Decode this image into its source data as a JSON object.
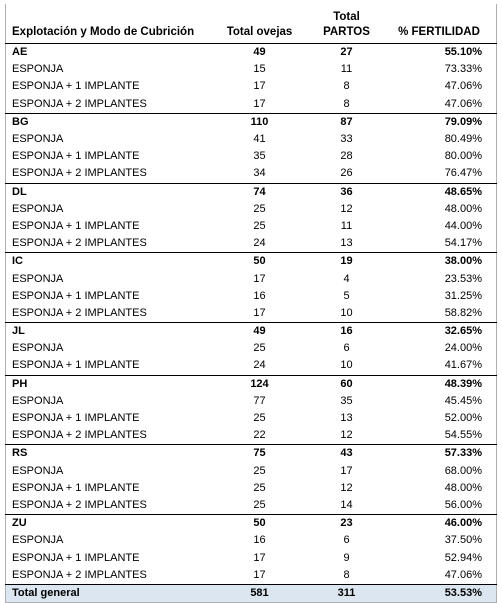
{
  "table": {
    "header": [
      "Explotación y Modo de Cubrición",
      "Total ovejas",
      [
        "Total",
        "PARTOS"
      ],
      "% FERTILIDAD"
    ],
    "groups": [
      {
        "row": [
          "AE",
          "49",
          "27",
          "55.10%"
        ],
        "subrows": [
          [
            "ESPONJA",
            "15",
            "11",
            "73.33%"
          ],
          [
            "ESPONJA + 1 IMPLANTE",
            "17",
            "8",
            "47.06%"
          ],
          [
            "ESPONJA + 2 IMPLANTES",
            "17",
            "8",
            "47.06%"
          ]
        ]
      },
      {
        "row": [
          "BG",
          "110",
          "87",
          "79.09%"
        ],
        "subrows": [
          [
            "ESPONJA",
            "41",
            "33",
            "80.49%"
          ],
          [
            "ESPONJA + 1 IMPLANTE",
            "35",
            "28",
            "80.00%"
          ],
          [
            "ESPONJA + 2 IMPLANTES",
            "34",
            "26",
            "76.47%"
          ]
        ]
      },
      {
        "row": [
          "DL",
          "74",
          "36",
          "48.65%"
        ],
        "subrows": [
          [
            "ESPONJA",
            "25",
            "12",
            "48.00%"
          ],
          [
            "ESPONJA + 1 IMPLANTE",
            "25",
            "11",
            "44.00%"
          ],
          [
            "ESPONJA + 2 IMPLANTES",
            "24",
            "13",
            "54.17%"
          ]
        ]
      },
      {
        "row": [
          "IC",
          "50",
          "19",
          "38.00%"
        ],
        "subrows": [
          [
            "ESPONJA",
            "17",
            "4",
            "23.53%"
          ],
          [
            "ESPONJA + 1 IMPLANTE",
            "16",
            "5",
            "31.25%"
          ],
          [
            "ESPONJA + 2 IMPLANTES",
            "17",
            "10",
            "58.82%"
          ]
        ]
      },
      {
        "row": [
          "JL",
          "49",
          "16",
          "32.65%"
        ],
        "subrows": [
          [
            "ESPONJA",
            "25",
            "6",
            "24.00%"
          ],
          [
            "ESPONJA + 1 IMPLANTE",
            "24",
            "10",
            "41.67%"
          ]
        ]
      },
      {
        "row": [
          "PH",
          "124",
          "60",
          "48.39%"
        ],
        "subrows": [
          [
            "ESPONJA",
            "77",
            "35",
            "45.45%"
          ],
          [
            "ESPONJA + 1 IMPLANTE",
            "25",
            "13",
            "52.00%"
          ],
          [
            "ESPONJA + 2 IMPLANTES",
            "22",
            "12",
            "54.55%"
          ]
        ]
      },
      {
        "row": [
          "RS",
          "75",
          "43",
          "57.33%"
        ],
        "subrows": [
          [
            "ESPONJA",
            "25",
            "17",
            "68.00%"
          ],
          [
            "ESPONJA + 1 IMPLANTE",
            "25",
            "12",
            "48.00%"
          ],
          [
            "ESPONJA + 2 IMPLANTES",
            "25",
            "14",
            "56.00%"
          ]
        ]
      },
      {
        "row": [
          "ZU",
          "50",
          "23",
          "46.00%"
        ],
        "subrows": [
          [
            "ESPONJA",
            "16",
            "6",
            "37.50%"
          ],
          [
            "ESPONJA + 1 IMPLANTE",
            "17",
            "9",
            "52.94%"
          ],
          [
            "ESPONJA + 2 IMPLANTES",
            "17",
            "8",
            "47.06%"
          ]
        ]
      }
    ],
    "total": [
      "Total general",
      "581",
      "311",
      "53.53%"
    ]
  }
}
